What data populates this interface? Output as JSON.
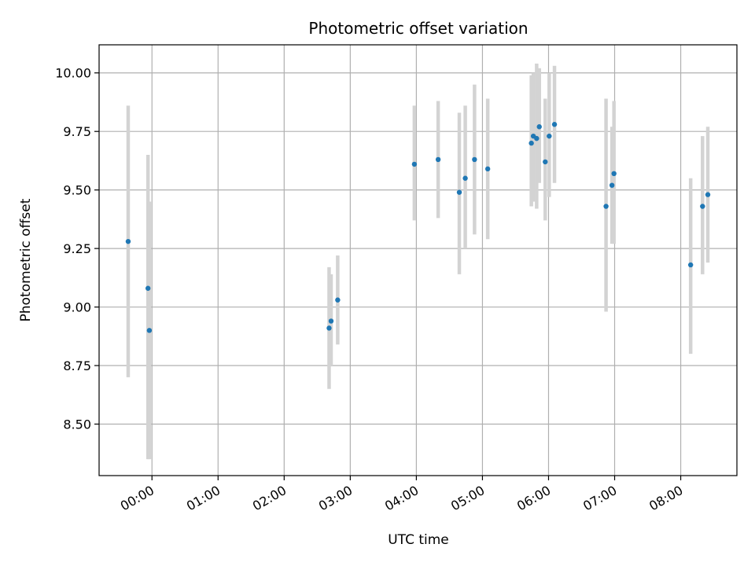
{
  "chart_data": {
    "type": "scatter",
    "title": "Photometric offset variation",
    "xlabel": "UTC time",
    "ylabel": "Photometric offset",
    "x_unit": "hours UTC (00:00 = 0.0; points before midnight are negative)",
    "xlim": [
      -0.8,
      8.85
    ],
    "ylim": [
      8.28,
      10.12
    ],
    "x_ticks": [
      {
        "value": 0,
        "label": "00:00"
      },
      {
        "value": 1,
        "label": "01:00"
      },
      {
        "value": 2,
        "label": "02:00"
      },
      {
        "value": 3,
        "label": "03:00"
      },
      {
        "value": 4,
        "label": "04:00"
      },
      {
        "value": 5,
        "label": "05:00"
      },
      {
        "value": 6,
        "label": "06:00"
      },
      {
        "value": 7,
        "label": "07:00"
      },
      {
        "value": 8,
        "label": "08:00"
      }
    ],
    "y_ticks": [
      {
        "value": 8.5,
        "label": "8.50"
      },
      {
        "value": 8.75,
        "label": "8.75"
      },
      {
        "value": 9.0,
        "label": "9.00"
      },
      {
        "value": 9.25,
        "label": "9.25"
      },
      {
        "value": 9.5,
        "label": "9.50"
      },
      {
        "value": 9.75,
        "label": "9.75"
      },
      {
        "value": 10.0,
        "label": "10.00"
      }
    ],
    "grid": true,
    "point_color": "#1f77b4",
    "errorbar_color": "#d3d3d3",
    "points": [
      {
        "x": -0.36,
        "y": 9.28,
        "err_low": 8.7,
        "err_high": 9.86
      },
      {
        "x": -0.06,
        "y": 9.08,
        "err_low": 8.35,
        "err_high": 9.65
      },
      {
        "x": -0.04,
        "y": 8.9,
        "err_low": 8.35,
        "err_high": 9.45
      },
      {
        "x": 2.68,
        "y": 8.91,
        "err_low": 8.65,
        "err_high": 9.17
      },
      {
        "x": 2.71,
        "y": 8.94,
        "err_low": 8.75,
        "err_high": 9.14
      },
      {
        "x": 2.81,
        "y": 9.03,
        "err_low": 8.84,
        "err_high": 9.22
      },
      {
        "x": 3.97,
        "y": 9.61,
        "err_low": 9.37,
        "err_high": 9.86
      },
      {
        "x": 4.33,
        "y": 9.63,
        "err_low": 9.38,
        "err_high": 9.88
      },
      {
        "x": 4.65,
        "y": 9.49,
        "err_low": 9.14,
        "err_high": 9.83
      },
      {
        "x": 4.74,
        "y": 9.55,
        "err_low": 9.25,
        "err_high": 9.86
      },
      {
        "x": 4.88,
        "y": 9.63,
        "err_low": 9.31,
        "err_high": 9.95
      },
      {
        "x": 5.08,
        "y": 9.59,
        "err_low": 9.29,
        "err_high": 9.89
      },
      {
        "x": 5.74,
        "y": 9.7,
        "err_low": 9.43,
        "err_high": 9.99
      },
      {
        "x": 5.77,
        "y": 9.73,
        "err_low": 9.45,
        "err_high": 10.0
      },
      {
        "x": 5.82,
        "y": 9.72,
        "err_low": 9.42,
        "err_high": 10.04
      },
      {
        "x": 5.86,
        "y": 9.77,
        "err_low": 9.53,
        "err_high": 10.02
      },
      {
        "x": 5.95,
        "y": 9.62,
        "err_low": 9.37,
        "err_high": 9.89
      },
      {
        "x": 6.01,
        "y": 9.73,
        "err_low": 9.47,
        "err_high": 10.0
      },
      {
        "x": 6.09,
        "y": 9.78,
        "err_low": 9.53,
        "err_high": 10.03
      },
      {
        "x": 6.87,
        "y": 9.43,
        "err_low": 8.98,
        "err_high": 9.89
      },
      {
        "x": 6.96,
        "y": 9.52,
        "err_low": 9.27,
        "err_high": 9.77
      },
      {
        "x": 6.99,
        "y": 9.57,
        "err_low": 9.27,
        "err_high": 9.88
      },
      {
        "x": 8.15,
        "y": 9.18,
        "err_low": 8.8,
        "err_high": 9.55
      },
      {
        "x": 8.33,
        "y": 9.43,
        "err_low": 9.14,
        "err_high": 9.73
      },
      {
        "x": 8.41,
        "y": 9.48,
        "err_low": 9.19,
        "err_high": 9.77
      }
    ]
  }
}
